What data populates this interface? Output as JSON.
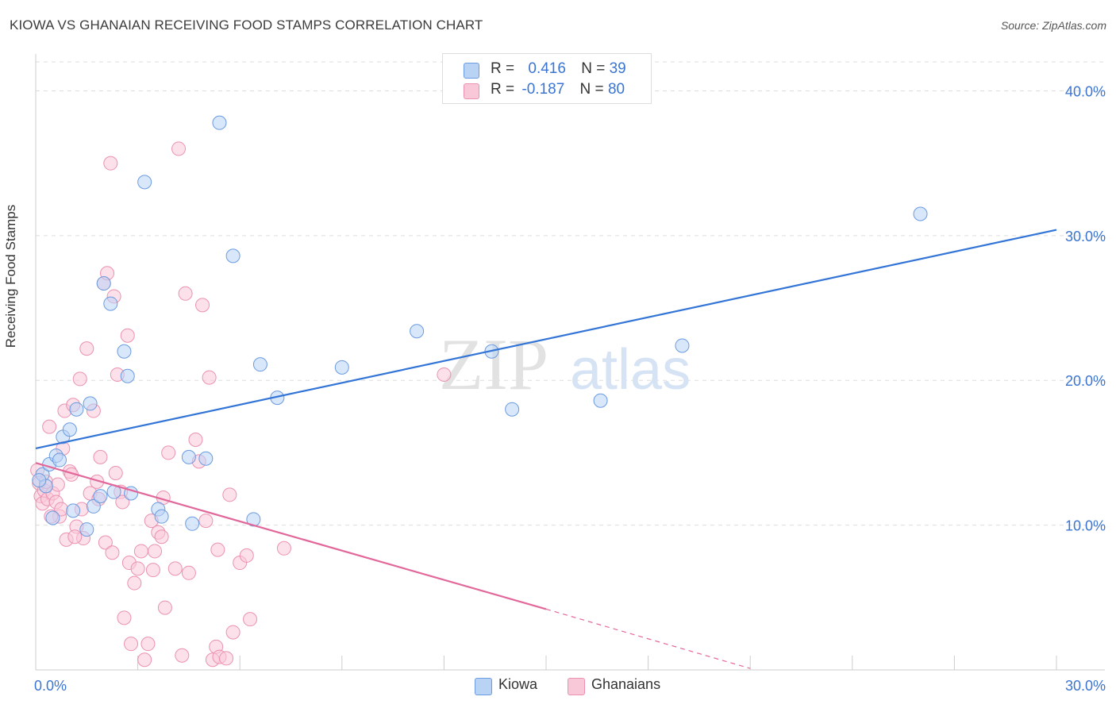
{
  "title": "KIOWA VS GHANAIAN RECEIVING FOOD STAMPS CORRELATION CHART",
  "source": "Source: ZipAtlas.com",
  "watermark": {
    "part1": "ZIP",
    "part2": "atlas"
  },
  "legend": {
    "kiowa": {
      "r_label": "R =",
      "r_value": "0.416",
      "n_label": "N =",
      "n_value": "39"
    },
    "ghanaians": {
      "r_label": "R =",
      "r_value": "-0.187",
      "n_label": "N =",
      "n_value": "80"
    }
  },
  "colors": {
    "kiowa_fill": "#b9d3f5",
    "kiowa_stroke": "#6b9be0",
    "kiowa_line": "#3275d6",
    "ghana_fill": "#f9c8d8",
    "ghana_stroke": "#eb91b1",
    "ghana_line": "#e2679a",
    "tick_label": "#3b74d1",
    "grid": "#dddddd"
  },
  "chart_data": {
    "type": "scatter",
    "title": "KIOWA VS GHANAIAN RECEIVING FOOD STAMPS CORRELATION CHART",
    "xlabel": "",
    "ylabel": "Receiving Food Stamps",
    "xlim": [
      0,
      30
    ],
    "ylim": [
      0,
      42
    ],
    "x_tick_labels": [
      "0.0%",
      "30.0%"
    ],
    "y_ticks": [
      10,
      20,
      30,
      40
    ],
    "y_tick_labels": [
      "10.0%",
      "20.0%",
      "30.0%",
      "40.0%"
    ],
    "grid": true,
    "legend_position": "top-center",
    "series": [
      {
        "name": "Kiowa",
        "points": [
          [
            0.2,
            13.5
          ],
          [
            0.3,
            12.7
          ],
          [
            0.4,
            14.2
          ],
          [
            0.5,
            10.5
          ],
          [
            0.6,
            14.8
          ],
          [
            0.7,
            14.5
          ],
          [
            0.8,
            16.1
          ],
          [
            1.0,
            16.6
          ],
          [
            1.1,
            11.0
          ],
          [
            1.2,
            18.0
          ],
          [
            1.5,
            9.7
          ],
          [
            1.6,
            18.4
          ],
          [
            1.7,
            11.3
          ],
          [
            1.9,
            12.0
          ],
          [
            2.0,
            26.7
          ],
          [
            2.2,
            25.3
          ],
          [
            2.3,
            12.3
          ],
          [
            2.6,
            22.0
          ],
          [
            2.7,
            20.3
          ],
          [
            2.8,
            12.2
          ],
          [
            3.2,
            33.7
          ],
          [
            3.6,
            11.1
          ],
          [
            3.7,
            10.6
          ],
          [
            4.5,
            14.7
          ],
          [
            4.6,
            10.1
          ],
          [
            5.0,
            14.6
          ],
          [
            5.4,
            37.8
          ],
          [
            5.8,
            28.6
          ],
          [
            6.4,
            10.4
          ],
          [
            6.6,
            21.1
          ],
          [
            7.1,
            18.8
          ],
          [
            9.0,
            20.9
          ],
          [
            11.2,
            23.4
          ],
          [
            13.4,
            22.0
          ],
          [
            14.0,
            18.0
          ],
          [
            16.6,
            18.6
          ],
          [
            19.0,
            22.4
          ],
          [
            26.0,
            31.5
          ],
          [
            0.1,
            13.1
          ]
        ]
      },
      {
        "name": "Ghanaians",
        "points": [
          [
            0.1,
            12.9
          ],
          [
            0.15,
            12.0
          ],
          [
            0.2,
            11.5
          ],
          [
            0.25,
            12.4
          ],
          [
            0.3,
            13.0
          ],
          [
            0.35,
            11.8
          ],
          [
            0.4,
            16.8
          ],
          [
            0.5,
            12.2
          ],
          [
            0.6,
            11.6
          ],
          [
            0.65,
            12.8
          ],
          [
            0.7,
            10.6
          ],
          [
            0.75,
            11.1
          ],
          [
            0.8,
            15.3
          ],
          [
            0.85,
            17.9
          ],
          [
            0.9,
            9.0
          ],
          [
            1.0,
            13.7
          ],
          [
            1.05,
            13.5
          ],
          [
            1.1,
            18.3
          ],
          [
            1.2,
            9.9
          ],
          [
            1.3,
            20.1
          ],
          [
            1.35,
            11.1
          ],
          [
            1.4,
            9.1
          ],
          [
            1.5,
            22.2
          ],
          [
            1.6,
            12.2
          ],
          [
            1.7,
            17.9
          ],
          [
            1.8,
            13.0
          ],
          [
            1.85,
            11.8
          ],
          [
            1.9,
            14.7
          ],
          [
            2.0,
            26.7
          ],
          [
            2.05,
            8.8
          ],
          [
            2.1,
            27.4
          ],
          [
            2.2,
            35.0
          ],
          [
            2.25,
            8.1
          ],
          [
            2.3,
            25.8
          ],
          [
            2.35,
            13.6
          ],
          [
            2.4,
            20.4
          ],
          [
            2.5,
            12.3
          ],
          [
            2.55,
            11.6
          ],
          [
            2.6,
            3.6
          ],
          [
            2.7,
            23.1
          ],
          [
            2.75,
            7.4
          ],
          [
            2.8,
            1.8
          ],
          [
            2.9,
            6.0
          ],
          [
            3.0,
            7.0
          ],
          [
            3.1,
            8.2
          ],
          [
            3.2,
            0.7
          ],
          [
            3.3,
            1.8
          ],
          [
            3.4,
            10.3
          ],
          [
            3.45,
            6.9
          ],
          [
            3.5,
            8.2
          ],
          [
            3.6,
            9.5
          ],
          [
            3.7,
            9.2
          ],
          [
            3.75,
            11.9
          ],
          [
            3.8,
            4.3
          ],
          [
            3.9,
            15.0
          ],
          [
            4.1,
            7.0
          ],
          [
            4.2,
            36.0
          ],
          [
            4.3,
            1.0
          ],
          [
            4.4,
            26.0
          ],
          [
            4.5,
            6.7
          ],
          [
            4.7,
            15.9
          ],
          [
            4.8,
            14.4
          ],
          [
            4.9,
            25.2
          ],
          [
            5.0,
            10.3
          ],
          [
            5.1,
            20.2
          ],
          [
            5.2,
            0.7
          ],
          [
            5.3,
            1.6
          ],
          [
            5.35,
            8.3
          ],
          [
            5.4,
            0.9
          ],
          [
            5.6,
            0.8
          ],
          [
            5.7,
            12.1
          ],
          [
            5.8,
            2.6
          ],
          [
            6.0,
            7.4
          ],
          [
            6.2,
            7.9
          ],
          [
            6.3,
            3.5
          ],
          [
            7.3,
            8.4
          ],
          [
            12.0,
            20.4
          ],
          [
            0.05,
            13.8
          ],
          [
            0.45,
            10.6
          ],
          [
            1.15,
            9.2
          ]
        ]
      }
    ],
    "trendlines": [
      {
        "name": "Kiowa",
        "from": [
          0,
          15.3
        ],
        "to": [
          30,
          30.4
        ]
      },
      {
        "name": "Ghanaians",
        "from": [
          0,
          14.3
        ],
        "to": [
          15,
          4.2
        ],
        "dashed_to": [
          21,
          0.1
        ]
      }
    ]
  },
  "bottom_legend": {
    "kiowa": "Kiowa",
    "ghanaians": "Ghanaians"
  }
}
